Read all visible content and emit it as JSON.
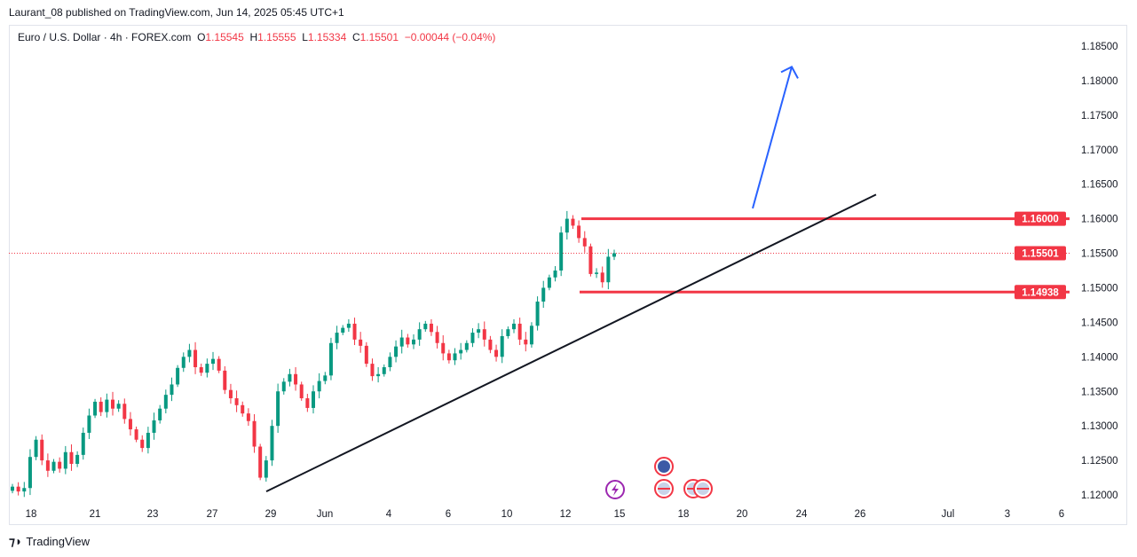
{
  "header": {
    "published": "Laurant_08 published on TradingView.com, Jun 14, 2025 05:45 UTC+1"
  },
  "legend": {
    "symbol": "Euro / U.S. Dollar · 4h · FOREX.com",
    "o_label": "O",
    "o": "1.15545",
    "h_label": "H",
    "h": "1.15555",
    "l_label": "L",
    "l": "1.15334",
    "c_label": "C",
    "c": "1.15501",
    "change": "−0.00044 (−0.04%)"
  },
  "footer": {
    "brand": "TradingView"
  },
  "colors": {
    "up": "#089981",
    "down": "#f23645",
    "level": "#f23645",
    "arrow": "#2962ff",
    "trendline": "#131722"
  },
  "chart_data": {
    "type": "candlestick",
    "ylim": [
      1.1185,
      1.1875
    ],
    "y_ticks": [
      "1.18500",
      "1.18000",
      "1.17500",
      "1.17000",
      "1.16500",
      "1.16000",
      "1.15500",
      "1.15000",
      "1.14500",
      "1.14000",
      "1.13500",
      "1.13000",
      "1.12500",
      "1.12000"
    ],
    "x_ticks": [
      "18",
      "21",
      "23",
      "27",
      "29",
      "Jun",
      "4",
      "6",
      "10",
      "12",
      "15",
      "18",
      "20",
      "24",
      "26",
      "Jul",
      "3",
      "6"
    ],
    "closes": [
      1.1212,
      1.1205,
      1.121,
      1.1255,
      1.128,
      1.125,
      1.1235,
      1.1248,
      1.1238,
      1.1262,
      1.1245,
      1.1258,
      1.129,
      1.1315,
      1.1335,
      1.132,
      1.1338,
      1.1325,
      1.1332,
      1.131,
      1.1295,
      1.128,
      1.1268,
      1.129,
      1.1308,
      1.1325,
      1.1345,
      1.136,
      1.1384,
      1.14,
      1.141,
      1.1385,
      1.1377,
      1.139,
      1.1397,
      1.138,
      1.1352,
      1.134,
      1.133,
      1.1318,
      1.1307,
      1.127,
      1.1225,
      1.125,
      1.13,
      1.135,
      1.1364,
      1.1375,
      1.136,
      1.134,
      1.1326,
      1.135,
      1.1365,
      1.1373,
      1.142,
      1.1435,
      1.1442,
      1.1448,
      1.1425,
      1.1416,
      1.139,
      1.1372,
      1.1375,
      1.1385,
      1.14,
      1.1415,
      1.1428,
      1.1418,
      1.1425,
      1.144,
      1.1448,
      1.1436,
      1.142,
      1.1405,
      1.1395,
      1.1405,
      1.141,
      1.142,
      1.1435,
      1.144,
      1.1425,
      1.141,
      1.14,
      1.143,
      1.144,
      1.1448,
      1.1425,
      1.1418,
      1.1445,
      1.148,
      1.15,
      1.1515,
      1.1525,
      1.158,
      1.16,
      1.159,
      1.1572,
      1.156,
      1.152,
      1.1522,
      1.1508,
      1.1545,
      1.155
    ],
    "last_price": {
      "value": 1.15501,
      "label": "1.15501"
    },
    "levels": [
      {
        "value": 1.16,
        "label": "1.16000"
      },
      {
        "value": 1.14938,
        "label": "1.14938"
      }
    ],
    "trendline": {
      "from": 1.1205,
      "to": 1.1635
    },
    "arrow": {
      "from": 1.1615,
      "to": 1.182
    }
  }
}
